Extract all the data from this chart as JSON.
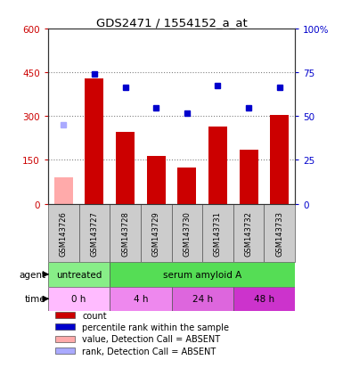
{
  "title": "GDS2471 / 1554152_a_at",
  "samples": [
    "GSM143726",
    "GSM143727",
    "GSM143728",
    "GSM143729",
    "GSM143730",
    "GSM143731",
    "GSM143732",
    "GSM143733"
  ],
  "bar_values": [
    null,
    430,
    245,
    165,
    125,
    265,
    185,
    305
  ],
  "bar_absent_values": [
    90,
    null,
    null,
    null,
    null,
    null,
    null,
    null
  ],
  "dot_values_left_scale": [
    null,
    445,
    400,
    330,
    310,
    405,
    330,
    400
  ],
  "dot_absent_values_left_scale": [
    270,
    null,
    null,
    null,
    null,
    null,
    null,
    null
  ],
  "bar_color": "#cc0000",
  "dot_color": "#0000cc",
  "bar_absent_color": "#ffaaaa",
  "dot_absent_color": "#aaaaff",
  "ylim_left": [
    0,
    600
  ],
  "ylim_right": [
    0,
    100
  ],
  "yticks_left": [
    0,
    150,
    300,
    450,
    600
  ],
  "yticks_right": [
    0,
    25,
    50,
    75,
    100
  ],
  "ytick_labels_left": [
    "0",
    "150",
    "300",
    "450",
    "600"
  ],
  "ytick_labels_right": [
    "0",
    "25",
    "50",
    "75",
    "100%"
  ],
  "hline_values": [
    150,
    300,
    450
  ],
  "agent_labels": [
    {
      "text": "untreated",
      "start": 0,
      "end": 2,
      "color": "#88ee88"
    },
    {
      "text": "serum amyloid A",
      "start": 2,
      "end": 8,
      "color": "#55dd55"
    }
  ],
  "time_labels": [
    {
      "text": "0 h",
      "start": 0,
      "end": 2,
      "color": "#ffbbff"
    },
    {
      "text": "4 h",
      "start": 2,
      "end": 4,
      "color": "#ee88ee"
    },
    {
      "text": "24 h",
      "start": 4,
      "end": 6,
      "color": "#dd66dd"
    },
    {
      "text": "48 h",
      "start": 6,
      "end": 8,
      "color": "#cc33cc"
    }
  ],
  "legend_items": [
    {
      "color": "#cc0000",
      "label": "count"
    },
    {
      "color": "#0000cc",
      "label": "percentile rank within the sample"
    },
    {
      "color": "#ffaaaa",
      "label": "value, Detection Call = ABSENT"
    },
    {
      "color": "#aaaaff",
      "label": "rank, Detection Call = ABSENT"
    }
  ],
  "ylabel_left_color": "#cc0000",
  "ylabel_right_color": "#0000cc",
  "sample_box_color": "#cccccc",
  "sample_box_border": "#555555",
  "plot_bg": "#ffffff",
  "fig_bg": "#ffffff"
}
